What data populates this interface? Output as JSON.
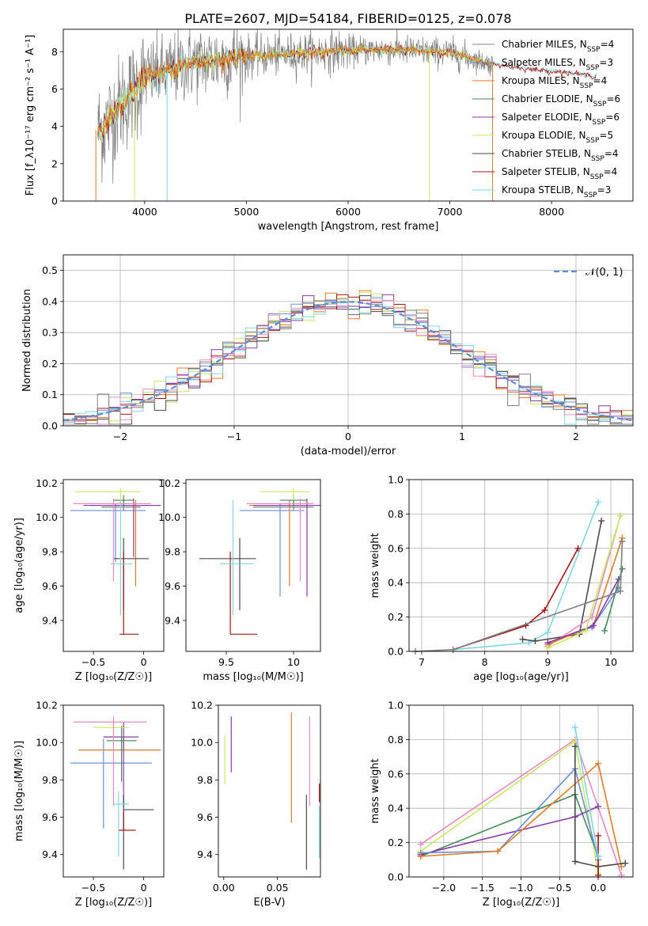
{
  "figure": {
    "title": "PLATE=2607, MJD=54184, FIBERID=0125, z=0.078"
  },
  "colors": {
    "chabrier_miles": "#808080",
    "salpeter_miles": "#6a8fd9",
    "kroupa_miles": "#e07b25",
    "chabrier_elodie": "#3f8a57",
    "salpeter_elodie": "#8a3aa8",
    "kroupa_elodie": "#c9e860",
    "chabrier_stelib": "#4a4a4a",
    "salpeter_stelib": "#a01818",
    "kroupa_stelib": "#7fd8e0",
    "pink": "#e68ac3",
    "normal": "#5b8ed6"
  },
  "chart_data": [
    {
      "id": "spectrum",
      "type": "line",
      "xlabel": "wavelength [Angstrom, rest frame]",
      "ylabel": "Flux [f_λ10⁻¹⁷ erg cm⁻² s⁻¹ A⁻¹]",
      "xlim": [
        3200,
        8800
      ],
      "ylim": [
        0,
        9.2
      ],
      "xticks": [
        4000,
        5000,
        6000,
        7000,
        8000
      ],
      "yticks": [
        0,
        2,
        4,
        6,
        8
      ],
      "legend_position": "right",
      "legend": [
        "Chabrier MILES, N_SSP=4",
        "Salpeter MILES, N_SSP=3",
        "Kroupa MILES, N_SSP=4",
        "Chabrier ELODIE, N_SSP=6",
        "Salpeter ELODIE, N_SSP=6",
        "Kroupa ELODIE, N_SSP=5",
        "Chabrier STELIB, N_SSP=4",
        "Salpeter STELIB, N_SSP=4",
        "Kroupa STELIB, N_SSP=3"
      ],
      "continuum": {
        "x": [
          3540,
          3600,
          3700,
          3800,
          3900,
          4000,
          4200,
          4400,
          4600,
          4800,
          5000,
          5200,
          5500,
          5800,
          6000,
          6200,
          6500,
          6800,
          7000,
          7200,
          7400,
          7600,
          7800,
          8000,
          8200,
          8400
        ],
        "y": [
          3.8,
          3.9,
          4.7,
          5.4,
          5.9,
          6.7,
          6.9,
          7.3,
          7.5,
          7.6,
          7.75,
          7.8,
          7.9,
          8.0,
          8.05,
          8.1,
          8.1,
          8.0,
          7.95,
          7.65,
          7.35,
          7.2,
          7.05,
          6.95,
          6.85,
          6.7
        ]
      }
    },
    {
      "id": "residuals",
      "type": "histogram",
      "xlabel": "(data-model)/error",
      "ylabel": "Normed distribution",
      "xlim": [
        -2.5,
        2.5
      ],
      "ylim": [
        0,
        0.55
      ],
      "xticks": [
        -2,
        -1,
        0,
        1,
        2
      ],
      "yticks": [
        0.0,
        0.1,
        0.2,
        0.3,
        0.4,
        0.5
      ],
      "grid": true,
      "legend": [
        "𝒩(0, 1)"
      ],
      "legend_position": "top-right"
    },
    {
      "id": "age_vs_Z",
      "type": "errorbar",
      "xlabel": "Z [log₁₀(Z/Z☉)]",
      "ylabel": "age  [log₁₀(age/yr)]",
      "xlim": [
        -0.8,
        0.2
      ],
      "ylim": [
        9.22,
        10.22
      ],
      "xticks": [
        -0.5,
        0.0
      ],
      "yticks": [
        9.4,
        9.6,
        9.8,
        10.0,
        10.2
      ],
      "points": [
        {
          "c": "chabrier_miles",
          "x": -0.2,
          "y": 10.06,
          "xerr": [
            0.22,
            0.17
          ],
          "yerr": [
            0.02,
            0.04
          ]
        },
        {
          "c": "salpeter_miles",
          "x": -0.28,
          "y": 10.04,
          "xerr": [
            0.45,
            0.3
          ],
          "yerr": [
            0.3,
            0.04
          ]
        },
        {
          "c": "kroupa_miles",
          "x": -0.08,
          "y": 10.07,
          "xerr": [
            0.45,
            0.25
          ],
          "yerr": [
            0.47,
            0.03
          ]
        },
        {
          "c": "chabrier_elodie",
          "x": -0.2,
          "y": 10.1,
          "xerr": [
            0.1,
            0.1
          ],
          "yerr": [
            0.03,
            0.03
          ]
        },
        {
          "c": "salpeter_elodie",
          "x": -0.1,
          "y": 10.07,
          "xerr": [
            0.5,
            0.27
          ],
          "yerr": [
            0.3,
            0.04
          ]
        },
        {
          "c": "kroupa_elodie",
          "x": -0.23,
          "y": 10.15,
          "xerr": [
            0.45,
            0.2
          ],
          "yerr": [
            0.05,
            0.02
          ]
        },
        {
          "c": "chabrier_stelib",
          "x": -0.2,
          "y": 9.76,
          "xerr": [
            0.1,
            0.25
          ],
          "yerr": [
            0.3,
            0.12
          ]
        },
        {
          "c": "salpeter_stelib",
          "x": -0.2,
          "y": 9.32,
          "xerr": [
            0.04,
            0.15
          ],
          "yerr": [
            0.0,
            0.48
          ]
        },
        {
          "c": "kroupa_stelib",
          "x": -0.23,
          "y": 9.73,
          "xerr": [
            0.1,
            0.12
          ],
          "yerr": [
            0.3,
            0.37
          ]
        },
        {
          "c": "pink",
          "x": -0.3,
          "y": 10.08,
          "xerr": [
            0.4,
            0.37
          ],
          "yerr": [
            0.45,
            0.03
          ]
        }
      ]
    },
    {
      "id": "age_vs_mass",
      "type": "errorbar",
      "xlabel": "mass [log₁₀(M/M☉)]",
      "ylabel": "",
      "xlim": [
        9.2,
        10.2
      ],
      "ylim": [
        9.22,
        10.22
      ],
      "xticks": [
        9.5,
        10.0
      ],
      "yticks": [
        9.4,
        9.6,
        9.8,
        10.0,
        10.2
      ],
      "points": [
        {
          "c": "chabrier_miles",
          "x": 10.0,
          "y": 10.06,
          "xerr": [
            0.3,
            0.15
          ],
          "yerr": [
            0.02,
            0.04
          ]
        },
        {
          "c": "salpeter_miles",
          "x": 9.9,
          "y": 10.04,
          "xerr": [
            0.3,
            0.18
          ],
          "yerr": [
            0.5,
            0.04
          ]
        },
        {
          "c": "kroupa_miles",
          "x": 9.97,
          "y": 10.07,
          "xerr": [
            0.3,
            0.15
          ],
          "yerr": [
            0.47,
            0.03
          ]
        },
        {
          "c": "chabrier_elodie",
          "x": 10.0,
          "y": 10.1,
          "xerr": [
            0.1,
            0.1
          ],
          "yerr": [
            0.03,
            0.03
          ]
        },
        {
          "c": "salpeter_elodie",
          "x": 10.1,
          "y": 10.07,
          "xerr": [
            0.4,
            0.1
          ],
          "yerr": [
            0.53,
            0.04
          ]
        },
        {
          "c": "kroupa_elodie",
          "x": 10.0,
          "y": 10.15,
          "xerr": [
            0.25,
            0.12
          ],
          "yerr": [
            0.05,
            0.02
          ]
        },
        {
          "c": "chabrier_stelib",
          "x": 9.6,
          "y": 9.76,
          "xerr": [
            0.3,
            0.12
          ],
          "yerr": [
            0.3,
            0.12
          ]
        },
        {
          "c": "salpeter_stelib",
          "x": 9.53,
          "y": 9.32,
          "xerr": [
            0.0,
            0.2
          ],
          "yerr": [
            0.0,
            0.48
          ]
        },
        {
          "c": "kroupa_stelib",
          "x": 9.55,
          "y": 9.73,
          "xerr": [
            0.1,
            0.15
          ],
          "yerr": [
            0.3,
            0.37
          ]
        },
        {
          "c": "pink",
          "x": 10.05,
          "y": 10.08,
          "xerr": [
            0.4,
            0.1
          ],
          "yerr": [
            0.45,
            0.03
          ]
        }
      ]
    },
    {
      "id": "weight_vs_age",
      "type": "line",
      "xlabel": "age  [log₁₀(age/yr)]",
      "ylabel": "mass weight",
      "xlim": [
        6.8,
        10.35
      ],
      "ylim": [
        0,
        1.0
      ],
      "xticks": [
        7,
        8,
        9,
        10
      ],
      "yticks": [
        0.0,
        0.2,
        0.4,
        0.6,
        0.8,
        1.0
      ],
      "grid": true,
      "series": [
        {
          "c": "kroupa_stelib",
          "x": [
            7.5,
            8.7,
            9.0,
            9.8
          ],
          "y": [
            0.01,
            0.05,
            0.11,
            0.87
          ]
        },
        {
          "c": "salpeter_stelib",
          "x": [
            7.5,
            8.65,
            8.95,
            9.48
          ],
          "y": [
            0.01,
            0.15,
            0.24,
            0.6
          ]
        },
        {
          "c": "chabrier_stelib",
          "x": [
            8.6,
            8.8,
            9.5,
            9.85
          ],
          "y": [
            0.07,
            0.06,
            0.1,
            0.76
          ]
        },
        {
          "c": "pink",
          "x": [
            9.0,
            9.7,
            10.15
          ],
          "y": [
            0.03,
            0.2,
            0.79
          ]
        },
        {
          "c": "salpeter_miles",
          "x": [
            9.0,
            9.7,
            10.12
          ],
          "y": [
            0.05,
            0.14,
            0.37
          ]
        },
        {
          "c": "kroupa_miles",
          "x": [
            9.0,
            9.72,
            10.18
          ],
          "y": [
            0.04,
            0.15,
            0.66
          ]
        },
        {
          "c": "salpeter_elodie",
          "x": [
            9.0,
            9.72,
            10.12
          ],
          "y": [
            0.05,
            0.15,
            0.42
          ]
        },
        {
          "c": "kroupa_elodie",
          "x": [
            9.0,
            9.6,
            10.15
          ],
          "y": [
            0.02,
            0.12,
            0.79
          ]
        },
        {
          "c": "chabrier_elodie",
          "x": [
            9.9,
            10.18
          ],
          "y": [
            0.12,
            0.48
          ]
        },
        {
          "c": "chabrier_miles",
          "x": [
            6.9,
            7.5,
            10.15,
            10.18
          ],
          "y": [
            0.0,
            0.01,
            0.35,
            0.64
          ]
        }
      ]
    },
    {
      "id": "mass_vs_Z",
      "type": "errorbar",
      "xlabel": "Z [log₁₀(Z/Z☉)]",
      "ylabel": "mass [log₁₀(M/M☉)]",
      "xlim": [
        -0.8,
        0.2
      ],
      "ylim": [
        9.28,
        10.2
      ],
      "xticks": [
        -0.5,
        0.0
      ],
      "yticks": [
        9.4,
        9.6,
        9.8,
        10.0,
        10.2
      ],
      "points": [
        {
          "c": "salpeter_miles",
          "x": -0.4,
          "y": 9.89,
          "xerr": [
            0.33,
            0.48
          ],
          "yerr": [
            0.35,
            0.13
          ]
        },
        {
          "c": "kroupa_miles",
          "x": -0.2,
          "y": 9.96,
          "xerr": [
            0.45,
            0.37
          ],
          "yerr": [
            0.0,
            0.07
          ]
        },
        {
          "c": "salpeter_elodie",
          "x": -0.2,
          "y": 10.03,
          "xerr": [
            0.2,
            0.15
          ],
          "yerr": [
            0.37,
            0.08
          ]
        },
        {
          "c": "chabrier_elodie",
          "x": -0.22,
          "y": 10.01,
          "xerr": [
            0.15,
            0.15
          ],
          "yerr": [
            0.22,
            0.08
          ]
        },
        {
          "c": "kroupa_elodie",
          "x": -0.3,
          "y": 10.08,
          "xerr": [
            0.2,
            0.15
          ],
          "yerr": [
            0.04,
            0.04
          ]
        },
        {
          "c": "pink",
          "x": -0.3,
          "y": 10.11,
          "xerr": [
            0.4,
            0.33
          ],
          "yerr": [
            0.45,
            0.03
          ]
        },
        {
          "c": "chabrier_stelib",
          "x": -0.2,
          "y": 9.64,
          "xerr": [
            0.0,
            0.3
          ],
          "yerr": [
            0.32,
            0.08
          ]
        },
        {
          "c": "salpeter_stelib",
          "x": -0.2,
          "y": 9.53,
          "xerr": [
            0.05,
            0.12
          ],
          "yerr": [
            0.0,
            0.1
          ]
        },
        {
          "c": "kroupa_stelib",
          "x": -0.25,
          "y": 9.67,
          "xerr": [
            0.05,
            0.1
          ],
          "yerr": [
            0.28,
            0.07
          ]
        }
      ]
    },
    {
      "id": "mass_vs_EBV",
      "type": "errorbar",
      "xlabel": "E(B-V)",
      "ylabel": "",
      "xlim": [
        -0.005,
        0.09
      ],
      "ylim": [
        9.28,
        10.2
      ],
      "xticks": [
        0.0,
        0.05
      ],
      "xticklabels": [
        "0.00",
        "0.05"
      ],
      "yticks": [
        9.4,
        9.6,
        9.8,
        10.0,
        10.2
      ],
      "points": [
        {
          "c": "kroupa_elodie",
          "x": 0.001,
          "y": 9.96,
          "yerr": [
            0.18,
            0.08
          ]
        },
        {
          "c": "salpeter_elodie",
          "x": 0.007,
          "y": 10.0,
          "yerr": [
            0.16,
            0.14
          ]
        },
        {
          "c": "kroupa_miles",
          "x": 0.063,
          "y": 9.86,
          "yerr": [
            0.29,
            0.3
          ]
        },
        {
          "c": "chabrier_stelib",
          "x": 0.077,
          "y": 9.52,
          "yerr": [
            0.2,
            0.2
          ]
        },
        {
          "c": "pink",
          "x": 0.08,
          "y": 9.9,
          "yerr": [
            0.24,
            0.24
          ]
        },
        {
          "c": "salpeter_stelib",
          "x": 0.089,
          "y": 9.68,
          "yerr": [
            0.0,
            0.1
          ]
        },
        {
          "c": "kroupa_stelib",
          "x": 0.089,
          "y": 9.52,
          "yerr": [
            0.14,
            0.14
          ]
        }
      ]
    },
    {
      "id": "weight_vs_Z",
      "type": "line",
      "xlabel": "Z [log₁₀(Z/Z☉)]",
      "ylabel": "mass weight",
      "xlim": [
        -2.45,
        0.45
      ],
      "ylim": [
        0,
        1.0
      ],
      "xticks": [
        -2.0,
        -1.5,
        -1.0,
        -0.5,
        0.0
      ],
      "yticks": [
        0.0,
        0.2,
        0.4,
        0.6,
        0.8,
        1.0
      ],
      "grid": true,
      "series": [
        {
          "c": "pink",
          "x": [
            -2.3,
            -0.3,
            0.3
          ],
          "y": [
            0.19,
            0.8,
            0.01
          ]
        },
        {
          "c": "kroupa_elodie",
          "x": [
            -2.3,
            -0.3,
            0.0
          ],
          "y": [
            0.15,
            0.79,
            0.02
          ]
        },
        {
          "c": "chabrier_elodie",
          "x": [
            -2.3,
            -0.3,
            0.0
          ],
          "y": [
            0.12,
            0.48,
            0.12
          ]
        },
        {
          "c": "salpeter_elodie",
          "x": [
            -2.3,
            -0.3,
            0.0
          ],
          "y": [
            0.13,
            0.35,
            0.41
          ]
        },
        {
          "c": "salpeter_miles",
          "x": [
            -2.3,
            -1.3,
            -0.3,
            0.0
          ],
          "y": [
            0.14,
            0.15,
            0.63,
            0.1
          ]
        },
        {
          "c": "kroupa_miles",
          "x": [
            -2.3,
            -1.3,
            0.0,
            0.3
          ],
          "y": [
            0.12,
            0.15,
            0.66,
            0.06
          ]
        },
        {
          "c": "chabrier_stelib",
          "x": [
            -0.3,
            -0.3,
            0.0,
            0.35
          ],
          "y": [
            0.76,
            0.09,
            0.06,
            0.08
          ]
        },
        {
          "c": "salpeter_stelib",
          "x": [
            0.0,
            0.0
          ],
          "y": [
            0.24,
            0.01
          ]
        },
        {
          "c": "kroupa_stelib",
          "x": [
            -0.3,
            0.0
          ],
          "y": [
            0.87,
            0.12
          ]
        }
      ]
    }
  ]
}
